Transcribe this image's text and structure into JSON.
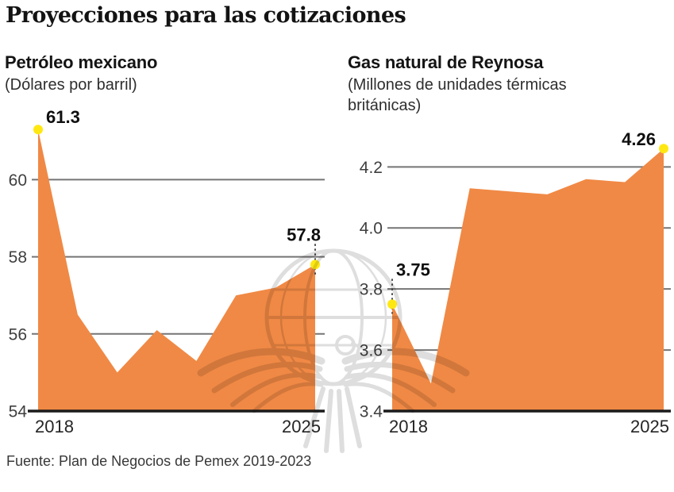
{
  "header": {
    "title": "Proyecciones para las cotizaciones"
  },
  "source": {
    "label": "Fuente: Plan de Negocios de Pemex 2019-2023"
  },
  "watermark": {
    "name": "eagle-globe-publisher-watermark"
  },
  "colors": {
    "area_fill": "#F08945",
    "endpoint_dot": "#FFE812",
    "gridline": "#757575",
    "axis_line": "#1B1B1B",
    "text_dark": "#141414",
    "watermark_gray": "#DEDEDE"
  },
  "chart_data": [
    {
      "type": "area",
      "title": "Petróleo mexicano",
      "subtitle": "(Dólares por barril)",
      "x": [
        2018,
        2019,
        2020,
        2021,
        2022,
        2023,
        2024,
        2025
      ],
      "values": [
        61.3,
        56.5,
        55.0,
        56.1,
        55.3,
        57.0,
        57.2,
        57.8
      ],
      "ylim": [
        54,
        61.6
      ],
      "yticks": [
        54,
        56,
        58,
        60
      ],
      "ytick_labels": [
        "54",
        "56",
        "58",
        "60"
      ],
      "x_axis_labels": [
        "2018",
        "2025"
      ],
      "endpoint_labels": {
        "first": "61.3",
        "last": "57.8"
      },
      "grid": "horizontal-only",
      "legend": "none"
    },
    {
      "type": "area",
      "title": "Gas natural de Reynosa",
      "subtitle": "(Millones de unidades térmicas británicas)",
      "x": [
        2018,
        2019,
        2020,
        2021,
        2022,
        2023,
        2024,
        2025
      ],
      "values": [
        3.75,
        3.49,
        4.13,
        4.12,
        4.11,
        4.16,
        4.15,
        4.26
      ],
      "ylim": [
        3.4,
        4.3
      ],
      "yticks": [
        3.4,
        3.6,
        3.8,
        4.0,
        4.2
      ],
      "ytick_labels": [
        "3.4",
        "3.6",
        "3.8",
        "4.0",
        "4.2"
      ],
      "x_axis_labels": [
        "2018",
        "2025"
      ],
      "endpoint_labels": {
        "first": "3.75",
        "last": "4.26"
      },
      "grid": "horizontal-only",
      "legend": "none"
    }
  ]
}
